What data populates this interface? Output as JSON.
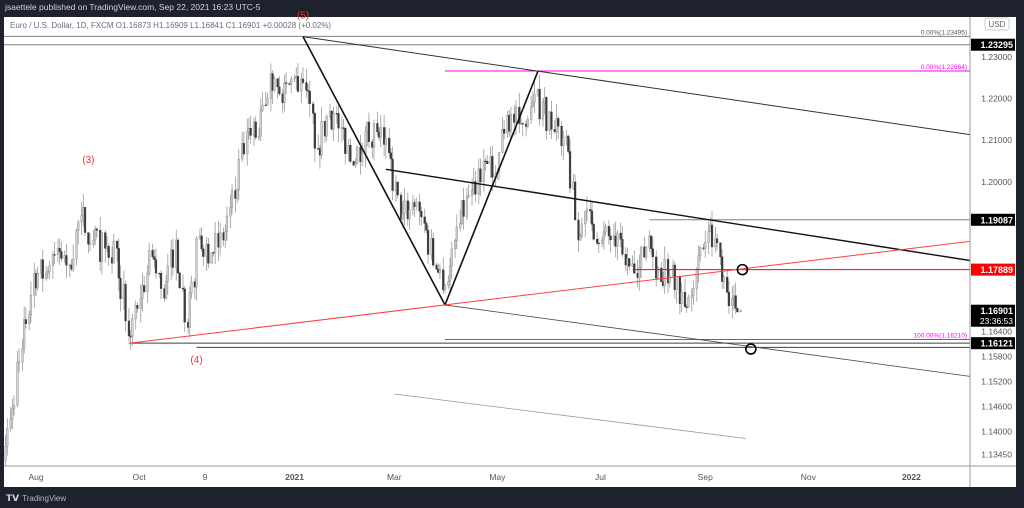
{
  "header": {
    "published": "jsaettele published on TradingView.com, Sep 22, 2021 16:23 UTC-5"
  },
  "legend": {
    "text": "Euro / U.S. Dollar, 1D, FXCM  O1.16873  H1.16909  L1.16841  C1.16901  +0.00028 (+0.02%)"
  },
  "footer": {
    "brand": "TradingView",
    "logo": "TV"
  },
  "axis": {
    "currency": "USD",
    "countdown": "23:36:53"
  },
  "colors": {
    "up": "#ffffff",
    "down": "#3a3a3a",
    "wick": "#9a9a9a",
    "red": "#ff0000",
    "magenta": "#ff00ff",
    "grid": "#b0b0b0"
  },
  "chart_data": {
    "type": "candlestick",
    "symbol": "EURUSD",
    "interval": "1D",
    "xlim": [
      "2020-07-10",
      "2022-01-25"
    ],
    "ylim": [
      1.133,
      1.238
    ],
    "grid": false,
    "x_ticks": [
      {
        "date": "2020-08-01",
        "label": "Aug",
        "bold": false
      },
      {
        "date": "2020-10-01",
        "label": "Oct",
        "bold": false
      },
      {
        "date": "2020-11-09",
        "label": "9",
        "bold": false
      },
      {
        "date": "2021-01-01",
        "label": "2021",
        "bold": true
      },
      {
        "date": "2021-03-01",
        "label": "Mar",
        "bold": false
      },
      {
        "date": "2021-05-01",
        "label": "May",
        "bold": false
      },
      {
        "date": "2021-07-01",
        "label": "Jul",
        "bold": false
      },
      {
        "date": "2021-09-01",
        "label": "Sep",
        "bold": false
      },
      {
        "date": "2021-11-01",
        "label": "Nov",
        "bold": false
      },
      {
        "date": "2022-01-01",
        "label": "2022",
        "bold": true
      }
    ],
    "y_ticks": [
      "1.23000",
      "1.22000",
      "1.21000",
      "1.20000",
      "1.16400",
      "1.15800",
      "1.15200",
      "1.14600",
      "1.14000",
      "1.13450"
    ],
    "price_badges": [
      {
        "value": "1.23295",
        "bg": "#000000"
      },
      {
        "value": "1.19087",
        "bg": "#000000"
      },
      {
        "value": "1.17889",
        "bg": "#ff0000"
      },
      {
        "value": "1.16901",
        "bg": "#000000"
      },
      {
        "value": "1.16121",
        "bg": "#000000"
      }
    ],
    "weekly_closes": [
      [
        "2020-07-10",
        1.13
      ],
      [
        "2020-07-17",
        1.143
      ],
      [
        "2020-07-24",
        1.16
      ],
      [
        "2020-07-31",
        1.178
      ],
      [
        "2020-08-07",
        1.178
      ],
      [
        "2020-08-14",
        1.184
      ],
      [
        "2020-08-21",
        1.18
      ],
      [
        "2020-08-28",
        1.192
      ],
      [
        "2020-09-04",
        1.186
      ],
      [
        "2020-09-11",
        1.184
      ],
      [
        "2020-09-18",
        1.184
      ],
      [
        "2020-09-25",
        1.163
      ],
      [
        "2020-10-02",
        1.172
      ],
      [
        "2020-10-09",
        1.182
      ],
      [
        "2020-10-16",
        1.172
      ],
      [
        "2020-10-23",
        1.186
      ],
      [
        "2020-10-30",
        1.165
      ],
      [
        "2020-11-06",
        1.187
      ],
      [
        "2020-11-13",
        1.183
      ],
      [
        "2020-11-20",
        1.186
      ],
      [
        "2020-11-27",
        1.196
      ],
      [
        "2020-12-04",
        1.212
      ],
      [
        "2020-12-11",
        1.211
      ],
      [
        "2020-12-18",
        1.226
      ],
      [
        "2020-12-25",
        1.219
      ],
      [
        "2021-01-01",
        1.225
      ],
      [
        "2021-01-08",
        1.222
      ],
      [
        "2021-01-15",
        1.208
      ],
      [
        "2021-01-22",
        1.217
      ],
      [
        "2021-01-29",
        1.213
      ],
      [
        "2021-02-05",
        1.204
      ],
      [
        "2021-02-12",
        1.212
      ],
      [
        "2021-02-19",
        1.212
      ],
      [
        "2021-02-26",
        1.207
      ],
      [
        "2021-03-05",
        1.191
      ],
      [
        "2021-03-12",
        1.195
      ],
      [
        "2021-03-19",
        1.19
      ],
      [
        "2021-03-26",
        1.179
      ],
      [
        "2021-04-02",
        1.176
      ],
      [
        "2021-04-09",
        1.19
      ],
      [
        "2021-04-16",
        1.198
      ],
      [
        "2021-04-23",
        1.205
      ],
      [
        "2021-04-30",
        1.202
      ],
      [
        "2021-05-07",
        1.216
      ],
      [
        "2021-05-14",
        1.214
      ],
      [
        "2021-05-21",
        1.218
      ],
      [
        "2021-05-28",
        1.219
      ],
      [
        "2021-06-04",
        1.212
      ],
      [
        "2021-06-11",
        1.211
      ],
      [
        "2021-06-18",
        1.186
      ],
      [
        "2021-06-25",
        1.193
      ],
      [
        "2021-07-02",
        1.186
      ],
      [
        "2021-07-09",
        1.187
      ],
      [
        "2021-07-16",
        1.18
      ],
      [
        "2021-07-23",
        1.177
      ],
      [
        "2021-07-30",
        1.187
      ],
      [
        "2021-08-06",
        1.176
      ],
      [
        "2021-08-13",
        1.18
      ],
      [
        "2021-08-20",
        1.17
      ],
      [
        "2021-08-27",
        1.179
      ],
      [
        "2021-09-03",
        1.188
      ],
      [
        "2021-09-10",
        1.182
      ],
      [
        "2021-09-17",
        1.172
      ],
      [
        "2021-09-22",
        1.169
      ]
    ],
    "horizontal_lines": [
      {
        "price": 1.23495,
        "from": "2020-07-10",
        "color": "#808080",
        "label": "0.00%(1.23495)"
      },
      {
        "price": 1.23295,
        "from": "2020-07-10",
        "color": "#808080",
        "label": ""
      },
      {
        "price": 1.22664,
        "from": "2021-03-31",
        "color": "#ff00ff",
        "label": "0.00%(1.22664)"
      },
      {
        "price": 1.19087,
        "from": "2021-07-30",
        "color": "#808080",
        "label": ""
      },
      {
        "price": 1.17889,
        "from": "2021-07-20",
        "color": "#ff0000",
        "label": ""
      },
      {
        "price": 1.1621,
        "from": "2021-03-31",
        "color": "#ff00ff",
        "label": "100.00%(1.16210)"
      },
      {
        "price": 1.16121,
        "from": "2020-09-25",
        "color": "#404040",
        "label": ""
      },
      {
        "price": 1.1602,
        "from": "2020-11-04",
        "color": "#404040",
        "label": ""
      }
    ],
    "trend_lines": [
      {
        "from": [
          "2021-01-06",
          1.2349
        ],
        "to": [
          "2021-05-25",
          1.2266
        ],
        "extend": true,
        "color": "#333333",
        "width": 1
      },
      {
        "from": [
          "2021-01-06",
          1.2349
        ],
        "to": [
          "2021-03-31",
          1.1704
        ],
        "extend": false,
        "color": "#111111",
        "width": 1.6
      },
      {
        "from": [
          "2021-03-31",
          1.1704
        ],
        "to": [
          "2021-05-25",
          1.2266
        ],
        "extend": false,
        "color": "#111111",
        "width": 1.6
      },
      {
        "from": [
          "2021-02-24",
          1.203
        ],
        "to": [
          "2021-09-17",
          1.19
        ],
        "extend": true,
        "color": "#111111",
        "width": 1.4
      },
      {
        "from": [
          "2020-09-25",
          1.1612
        ],
        "to": [
          "2021-03-31",
          1.1704
        ],
        "extend": true,
        "color": "#ff4040",
        "width": 1
      },
      {
        "from": [
          "2021-03-31",
          1.1704
        ],
        "to": [
          "2021-09-17",
          1.161
        ],
        "extend": true,
        "color": "#444444",
        "width": 0.8
      },
      {
        "from": [
          "2021-03-01",
          1.149
        ],
        "to": [
          "2021-09-25",
          1.1383
        ],
        "extend": false,
        "color": "#999999",
        "width": 0.8
      }
    ],
    "circles": [
      [
        "2021-09-23",
        1.17889
      ],
      [
        "2021-09-28",
        1.1598
      ]
    ],
    "wave_labels": [
      {
        "text": "(3)",
        "date": "2020-09-01",
        "price": 1.2045
      },
      {
        "text": "(4)",
        "date": "2020-11-04",
        "price": 1.1565
      },
      {
        "text": "(5)",
        "date": "2021-01-06",
        "price": 1.2392
      }
    ]
  }
}
